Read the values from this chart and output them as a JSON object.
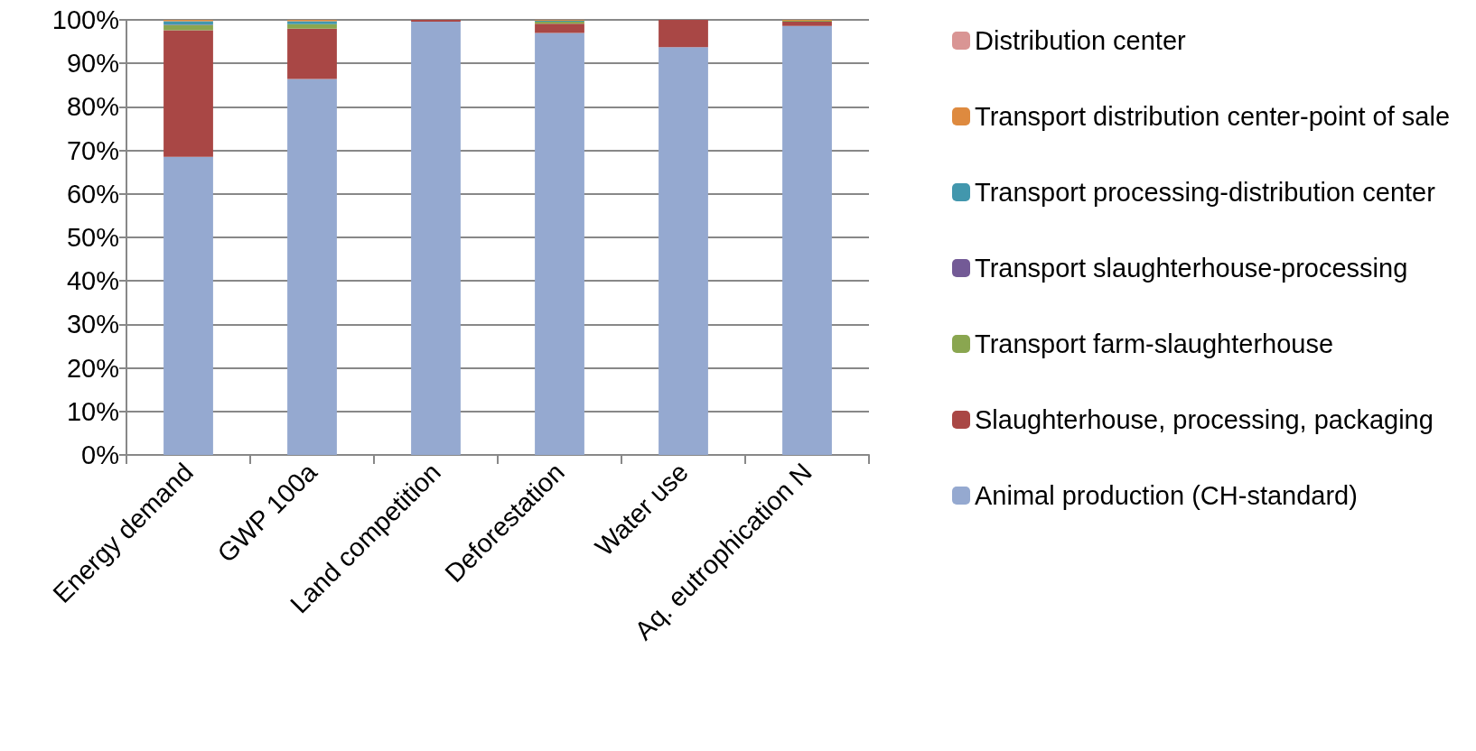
{
  "chart_data": {
    "type": "bar",
    "stacked": true,
    "categories": [
      "Energy demand",
      "GWP 100a",
      "Land competition",
      "Deforestation",
      "Water use",
      "Aq. eutrophication N"
    ],
    "series": [
      {
        "name": "Animal production (CH-standard)",
        "color": "#95a9d0",
        "values": [
          68.5,
          86.4,
          99.6,
          97.0,
          93.7,
          98.6
        ]
      },
      {
        "name": "Slaughterhouse, processing, packaging",
        "color": "#a94745",
        "values": [
          29.1,
          11.6,
          0.4,
          2.1,
          6.3,
          1.0
        ]
      },
      {
        "name": "Transport farm-slaughterhouse",
        "color": "#8aa650",
        "values": [
          1.2,
          1.0,
          0,
          0.5,
          0,
          0.2
        ]
      },
      {
        "name": "Transport slaughterhouse-processing",
        "color": "#735a96",
        "values": [
          0.1,
          0,
          0,
          0,
          0,
          0
        ]
      },
      {
        "name": "Transport processing-distribution center",
        "color": "#4297ad",
        "values": [
          0.8,
          0.7,
          0,
          0.2,
          0,
          0
        ]
      },
      {
        "name": "Transport distribution center-point of sale",
        "color": "#de8a3f",
        "values": [
          0.3,
          0.3,
          0,
          0.2,
          0,
          0.2
        ]
      },
      {
        "name": "Distribution center",
        "color": "#d99594",
        "values": [
          0,
          0,
          0,
          0,
          0,
          0
        ]
      }
    ],
    "ylim": [
      0,
      100
    ],
    "yticks": [
      {
        "value": 0,
        "label": "0%"
      },
      {
        "value": 10,
        "label": "10%"
      },
      {
        "value": 20,
        "label": "20%"
      },
      {
        "value": 30,
        "label": "30%"
      },
      {
        "value": 40,
        "label": "40%"
      },
      {
        "value": 50,
        "label": "50%"
      },
      {
        "value": 60,
        "label": "60%"
      },
      {
        "value": 70,
        "label": "70%"
      },
      {
        "value": 80,
        "label": "80%"
      },
      {
        "value": 90,
        "label": "90%"
      },
      {
        "value": 100,
        "label": "100%"
      }
    ],
    "grid": "y",
    "legend": "right"
  }
}
